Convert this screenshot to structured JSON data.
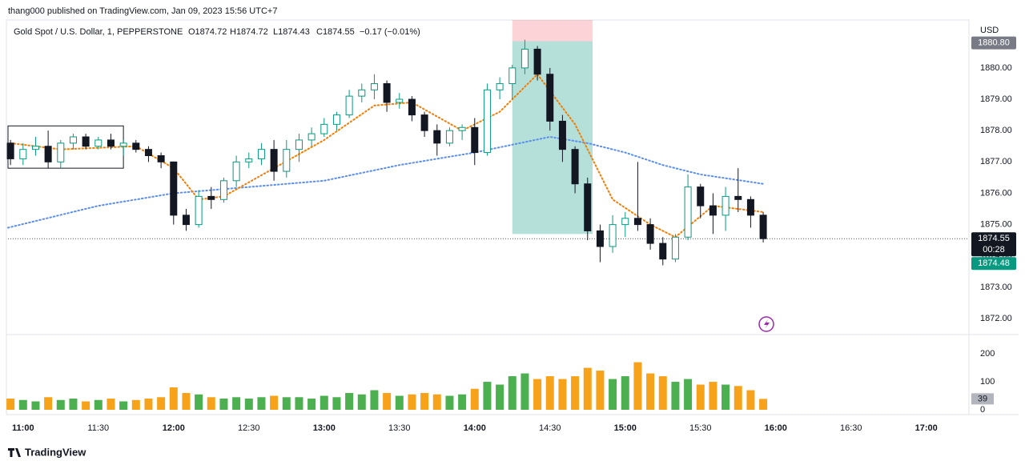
{
  "header": {
    "published": "thang000 published on TradingView.com, Jan 09, 2023 15:56 UTC+7"
  },
  "footer": {
    "brand": "TradingView"
  },
  "chart_data": {
    "type": "candlestick",
    "legend": {
      "symbol": "Gold Spot / U.S. Dollar, 1, PEPPERSTONE",
      "open": "O1874.72",
      "high": "H1874.72",
      "low": "L1874.43",
      "close": "C1874.55",
      "change": "−0.17 (−0.01%)"
    },
    "currency": "USD",
    "x": [
      "10:55",
      "11:00",
      "11:05",
      "11:10",
      "11:15",
      "11:20",
      "11:25",
      "11:30",
      "11:35",
      "11:40",
      "11:45",
      "11:50",
      "11:55",
      "12:00",
      "12:05",
      "12:10",
      "12:15",
      "12:20",
      "12:25",
      "12:30",
      "12:35",
      "12:40",
      "12:45",
      "12:50",
      "12:55",
      "13:00",
      "13:05",
      "13:10",
      "13:15",
      "13:20",
      "13:25",
      "13:30",
      "13:35",
      "13:40",
      "13:45",
      "13:50",
      "13:55",
      "14:00",
      "14:05",
      "14:10",
      "14:15",
      "14:20",
      "14:25",
      "14:30",
      "14:35",
      "14:40",
      "14:45",
      "14:50",
      "14:55",
      "15:00",
      "15:05",
      "15:10",
      "15:15",
      "15:20",
      "15:25",
      "15:30",
      "15:35",
      "15:40",
      "15:45",
      "15:50",
      "15:55"
    ],
    "open": [
      1877.6,
      1877.1,
      1877.4,
      1877.5,
      1877.0,
      1877.6,
      1877.8,
      1877.5,
      1877.7,
      1877.5,
      1877.6,
      1877.4,
      1877.2,
      1877.0,
      1875.3,
      1875.0,
      1875.9,
      1875.8,
      1876.4,
      1877.0,
      1877.1,
      1877.4,
      1876.7,
      1877.4,
      1877.7,
      1877.9,
      1878.2,
      1878.5,
      1879.1,
      1879.3,
      1879.5,
      1878.9,
      1879.0,
      1878.5,
      1878.0,
      1877.6,
      1878.0,
      1878.1,
      1877.3,
      1879.3,
      1879.5,
      1880.0,
      1880.6,
      1879.8,
      1878.3,
      1877.4,
      1876.3,
      1874.8,
      1874.3,
      1875.0,
      1875.2,
      1875.0,
      1874.4,
      1873.9,
      1874.6,
      1876.2,
      1875.6,
      1875.3,
      1875.9,
      1875.8,
      1875.3
    ],
    "high": [
      1877.7,
      1877.6,
      1877.8,
      1878.0,
      1877.7,
      1877.9,
      1877.9,
      1877.8,
      1877.9,
      1877.7,
      1877.7,
      1877.5,
      1877.3,
      1877.0,
      1875.5,
      1876.1,
      1876.2,
      1876.5,
      1877.2,
      1877.3,
      1877.6,
      1877.7,
      1877.7,
      1877.9,
      1878.1,
      1878.4,
      1878.6,
      1879.3,
      1879.5,
      1879.8,
      1879.6,
      1879.2,
      1879.1,
      1878.6,
      1878.2,
      1878.1,
      1878.2,
      1878.4,
      1879.5,
      1879.7,
      1880.1,
      1880.9,
      1880.7,
      1880.0,
      1878.5,
      1877.5,
      1876.5,
      1875.0,
      1875.3,
      1875.4,
      1877.0,
      1875.2,
      1874.6,
      1874.7,
      1876.6,
      1876.3,
      1876.0,
      1876.2,
      1876.8,
      1875.9,
      1875.4
    ],
    "low": [
      1876.9,
      1876.9,
      1877.2,
      1876.8,
      1876.8,
      1877.4,
      1877.4,
      1877.4,
      1877.4,
      1877.2,
      1877.3,
      1877.0,
      1876.8,
      1875.0,
      1874.8,
      1874.9,
      1875.5,
      1875.7,
      1876.2,
      1876.8,
      1876.9,
      1876.4,
      1876.5,
      1877.0,
      1877.5,
      1877.8,
      1878.0,
      1878.4,
      1878.9,
      1879.0,
      1878.6,
      1878.7,
      1878.3,
      1877.8,
      1877.2,
      1877.5,
      1877.7,
      1876.9,
      1877.2,
      1879.0,
      1879.0,
      1879.8,
      1879.6,
      1878.0,
      1877.0,
      1876.0,
      1874.5,
      1873.8,
      1874.1,
      1874.6,
      1874.8,
      1874.2,
      1873.7,
      1873.8,
      1874.5,
      1875.2,
      1874.7,
      1874.8,
      1875.4,
      1874.9,
      1874.43
    ],
    "close": [
      1877.1,
      1877.4,
      1877.5,
      1877.0,
      1877.6,
      1877.8,
      1877.5,
      1877.7,
      1877.5,
      1877.6,
      1877.4,
      1877.2,
      1877.0,
      1875.3,
      1875.0,
      1875.9,
      1875.8,
      1876.4,
      1877.0,
      1877.1,
      1877.4,
      1876.7,
      1877.4,
      1877.7,
      1877.9,
      1878.2,
      1878.5,
      1879.1,
      1879.3,
      1879.5,
      1878.9,
      1879.0,
      1878.5,
      1878.0,
      1877.6,
      1878.0,
      1878.1,
      1877.3,
      1879.3,
      1879.5,
      1880.0,
      1880.6,
      1879.8,
      1878.3,
      1877.4,
      1876.3,
      1874.8,
      1874.3,
      1875.0,
      1875.2,
      1875.0,
      1874.4,
      1873.9,
      1874.6,
      1876.2,
      1875.6,
      1875.3,
      1875.9,
      1875.8,
      1875.3,
      1874.55
    ],
    "volume": [
      40,
      35,
      30,
      45,
      35,
      40,
      30,
      35,
      40,
      30,
      35,
      40,
      45,
      80,
      60,
      55,
      45,
      40,
      45,
      40,
      45,
      50,
      45,
      45,
      40,
      50,
      45,
      60,
      55,
      70,
      60,
      50,
      55,
      60,
      55,
      50,
      55,
      75,
      100,
      90,
      120,
      130,
      110,
      120,
      110,
      120,
      150,
      140,
      110,
      120,
      170,
      130,
      120,
      100,
      110,
      90,
      100,
      90,
      85,
      70,
      39
    ],
    "up_color": "#089981",
    "down_color": "#131722",
    "volume_up_color": "#4caf50",
    "volume_down_color": "#f7a21b",
    "ma_fast": {
      "color": "#f57c00",
      "x": [
        "10:55",
        "11:15",
        "11:45",
        "12:00",
        "12:10",
        "12:20",
        "12:40",
        "13:00",
        "13:20",
        "13:35",
        "13:55",
        "14:10",
        "14:25",
        "14:40",
        "14:55",
        "15:10",
        "15:20",
        "15:35",
        "15:55"
      ],
      "values": [
        1877.6,
        1877.4,
        1877.5,
        1876.8,
        1875.8,
        1875.9,
        1876.8,
        1877.7,
        1878.8,
        1878.9,
        1878.0,
        1878.6,
        1879.8,
        1878.2,
        1875.8,
        1875.0,
        1874.6,
        1875.6,
        1875.4
      ]
    },
    "ma_slow": {
      "color": "#5b8def",
      "x": [
        "10:54",
        "11:30",
        "12:00",
        "12:30",
        "13:00",
        "13:30",
        "14:00",
        "14:30",
        "14:45",
        "15:00",
        "15:15",
        "15:30",
        "15:55"
      ],
      "values": [
        1874.9,
        1875.6,
        1876.0,
        1876.2,
        1876.4,
        1876.9,
        1877.3,
        1877.8,
        1877.6,
        1877.3,
        1876.9,
        1876.6,
        1876.3
      ]
    },
    "position_tool": {
      "start": "14:15",
      "end": "14:47",
      "stop": 1881.53,
      "entry": 1880.85,
      "target": 1874.7
    },
    "range_box": {
      "start": "10:54",
      "end": "11:40",
      "top": 1878.15,
      "bottom": 1876.8
    },
    "xlim": [
      "10:54",
      "17:17"
    ],
    "xticks": [
      "11:00",
      "11:30",
      "12:00",
      "12:30",
      "13:00",
      "13:30",
      "14:00",
      "14:30",
      "15:00",
      "15:30",
      "16:00",
      "16:30",
      "17:00"
    ],
    "ylim": [
      1871.49,
      1881.53
    ],
    "yticks": [
      {
        "value": 1872,
        "label": "1872.00"
      },
      {
        "value": 1873,
        "label": "1873.00"
      },
      {
        "value": 1874,
        "label": "1874.00"
      },
      {
        "value": 1875,
        "label": "1875.00"
      },
      {
        "value": 1876,
        "label": "1876.00"
      },
      {
        "value": 1877,
        "label": "1877.00"
      },
      {
        "value": 1878,
        "label": "1878.00"
      },
      {
        "value": 1879,
        "label": "1879.00"
      },
      {
        "value": 1880,
        "label": "1880.00"
      }
    ],
    "volume_ylim": [
      0,
      269
    ],
    "volume_yticks": [
      0,
      100,
      200
    ],
    "price_tags": [
      {
        "value": 1880.8,
        "label": "1880.80",
        "color": "#787b86"
      },
      {
        "value": 1874.55,
        "label": "1874.55",
        "color": "#131722"
      },
      {
        "value": 1874.48,
        "label": "1874.48",
        "color": "#089981"
      }
    ],
    "countdown": "00:28",
    "grid": false
  }
}
